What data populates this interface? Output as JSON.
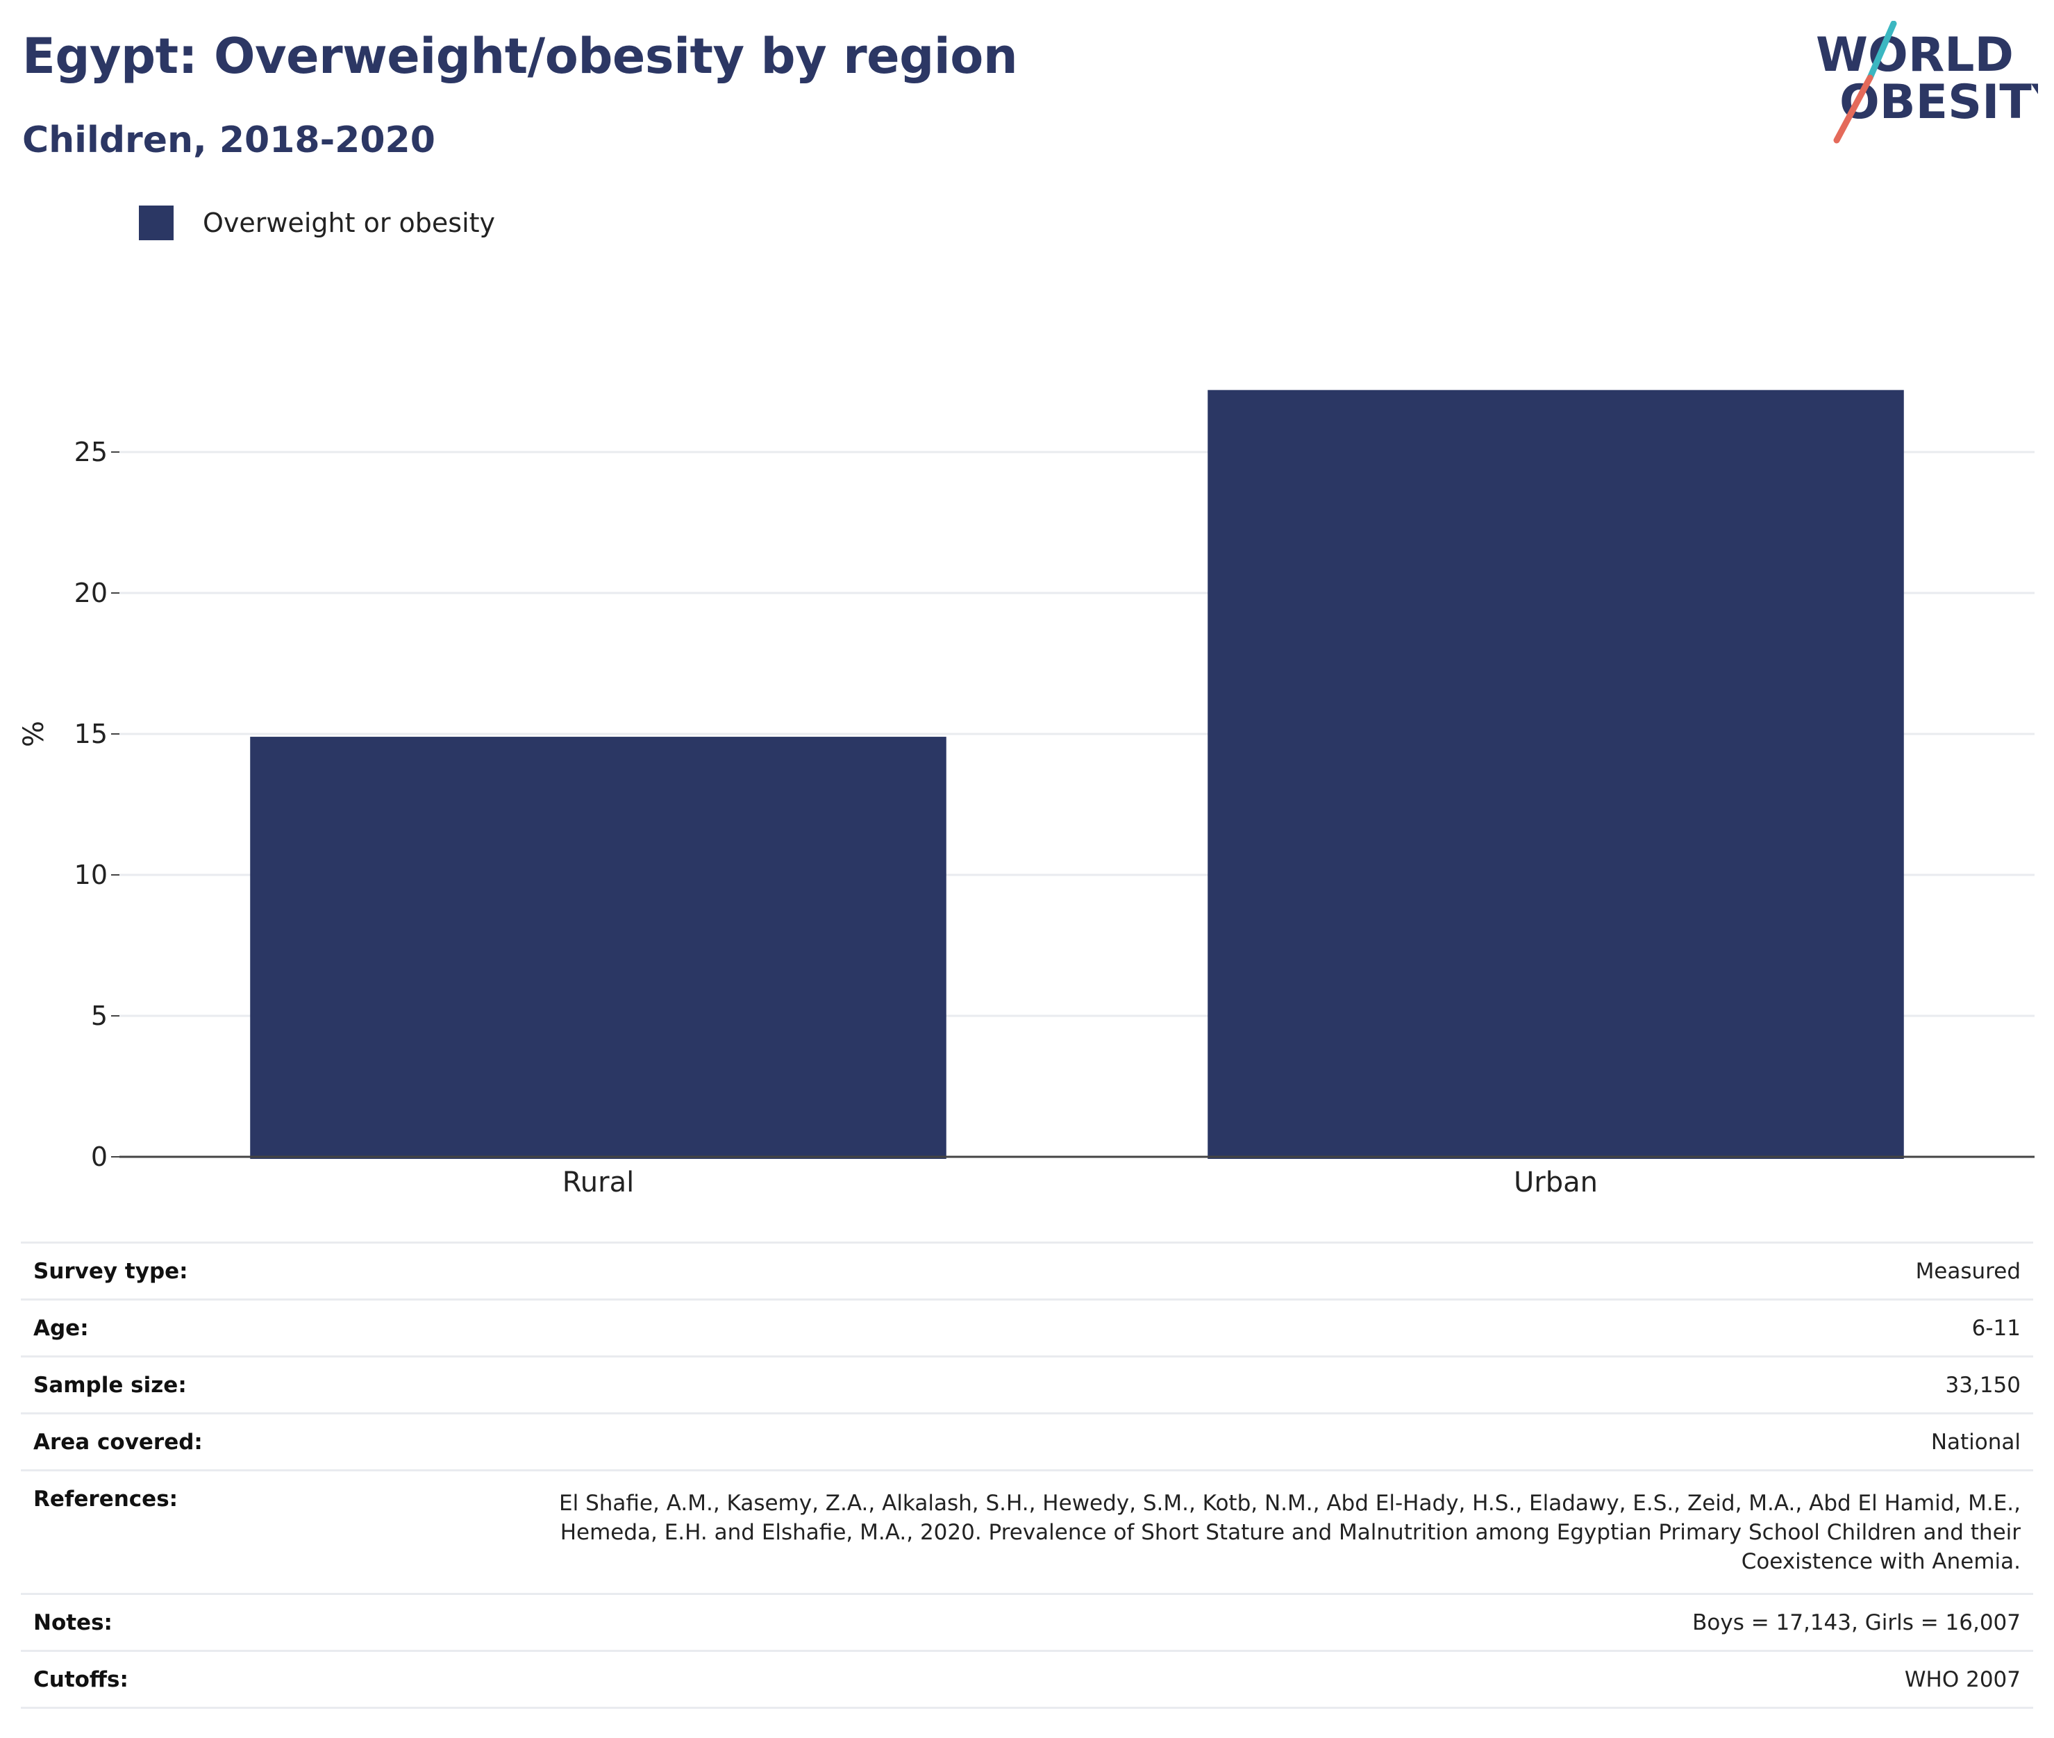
{
  "header": {
    "title": "Egypt: Overweight/obesity by region",
    "subtitle": "Children, 2018-2020"
  },
  "logo": {
    "line1": "WORLD",
    "line2": "OBESITY",
    "text_color": "#2c3764",
    "slash_teal": "#3bb7c1",
    "slash_coral": "#e46a5a"
  },
  "legend": {
    "label": "Overweight or obesity",
    "color": "#2b3764"
  },
  "chart_data": {
    "type": "bar",
    "categories": [
      "Rural",
      "Urban"
    ],
    "series": [
      {
        "name": "Overweight or obesity",
        "values": [
          14.9,
          27.2
        ],
        "color": "#2b3764"
      }
    ],
    "title": "Egypt: Overweight/obesity by region",
    "subtitle": "Children, 2018-2020",
    "xlabel": "",
    "ylabel": "%",
    "ylim": [
      0,
      30
    ],
    "yticks": [
      0,
      5,
      10,
      15,
      20,
      25
    ],
    "grid": true,
    "legend_position": "top-left"
  },
  "table": {
    "rows": [
      {
        "label": "Survey type:",
        "value": "Measured"
      },
      {
        "label": "Age:",
        "value": "6-11"
      },
      {
        "label": "Sample size:",
        "value": "33,150"
      },
      {
        "label": "Area covered:",
        "value": "National"
      },
      {
        "label": "References:",
        "value_lines": [
          "El Shafie, A.M., Kasemy, Z.A., Alkalash, S.H., Hewedy, S.M., Kotb, N.M., Abd El-Hady, H.S., Eladawy, E.S., Zeid, M.A., Abd El Hamid, M.E.,",
          "Hemeda, E.H. and Elshafie, M.A., 2020. Prevalence of Short Stature and Malnutrition among Egyptian Primary School Children and their",
          "Coexistence with Anemia."
        ]
      },
      {
        "label": "Notes:",
        "value": "Boys = 17,143, Girls = 16,007"
      },
      {
        "label": "Cutoffs:",
        "value": "WHO 2007"
      }
    ]
  }
}
